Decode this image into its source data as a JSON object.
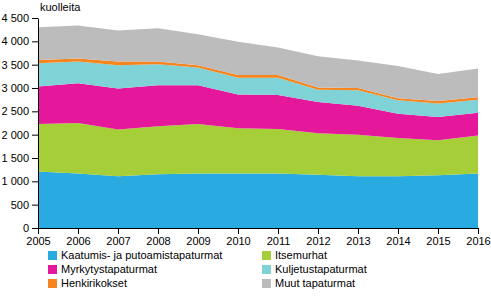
{
  "chart_data": {
    "type": "area",
    "stacked": true,
    "grid": false,
    "legend": "bottom",
    "y_label": "kuolleita",
    "x": [
      2005,
      2006,
      2007,
      2008,
      2009,
      2010,
      2011,
      2012,
      2013,
      2014,
      2015,
      2016
    ],
    "xlim": [
      2005,
      2016
    ],
    "xticks": [
      2005,
      2006,
      2007,
      2008,
      2009,
      2010,
      2011,
      2012,
      2013,
      2014,
      2015,
      2016
    ],
    "ylim": [
      0,
      4500
    ],
    "yticks": [
      0,
      500,
      {
        "value": 1000,
        "label": "1 000"
      },
      {
        "value": 1500,
        "label": "1 500"
      },
      {
        "value": 2000,
        "label": "2 000"
      },
      {
        "value": 2500,
        "label": "2 500"
      },
      {
        "value": 3000,
        "label": "3 000"
      },
      {
        "value": 3500,
        "label": "3 500"
      },
      {
        "value": 4000,
        "label": "4 000"
      },
      {
        "value": 4500,
        "label": "4 500"
      }
    ],
    "series": [
      {
        "name": "Kaatumis- ja putoamistapaturmat",
        "color": "#29abe2",
        "values": [
          1210,
          1170,
          1110,
          1150,
          1170,
          1170,
          1170,
          1140,
          1110,
          1110,
          1130,
          1170
        ]
      },
      {
        "name": "Itsemurhat",
        "color": "#a6ce39",
        "values": [
          1020,
          1080,
          1000,
          1030,
          1060,
          970,
          950,
          890,
          890,
          820,
          750,
          810
        ]
      },
      {
        "name": "Myrkytystapaturmat",
        "color": "#e5179b",
        "values": [
          800,
          850,
          880,
          880,
          830,
          720,
          730,
          670,
          620,
          520,
          500,
          490
        ]
      },
      {
        "name": "Kuljetustapaturmat",
        "color": "#7fd2d6",
        "values": [
          500,
          470,
          500,
          450,
          380,
          360,
          370,
          260,
          330,
          290,
          290,
          280
        ]
      },
      {
        "name": "Henkirikokset",
        "color": "#f6851f",
        "values": [
          70,
          60,
          80,
          60,
          50,
          60,
          60,
          50,
          50,
          40,
          50,
          50
        ]
      },
      {
        "name": "Muut tapaturmat",
        "color": "#bcbcbc",
        "values": [
          700,
          710,
          660,
          710,
          660,
          710,
          590,
          670,
          590,
          690,
          580,
          620
        ]
      }
    ]
  }
}
